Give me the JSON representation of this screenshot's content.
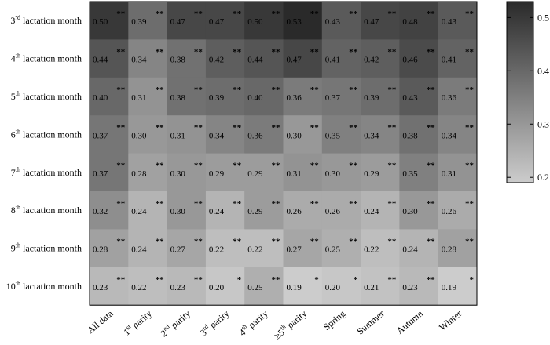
{
  "chart_data": {
    "type": "heatmap",
    "rows": [
      {
        "ordinal": "3",
        "suffix": "rd",
        "label": "lactation month"
      },
      {
        "ordinal": "4",
        "suffix": "th",
        "label": "lactation month"
      },
      {
        "ordinal": "5",
        "suffix": "th",
        "label": "lactation month"
      },
      {
        "ordinal": "6",
        "suffix": "th",
        "label": "lactation month"
      },
      {
        "ordinal": "7",
        "suffix": "th",
        "label": "lactation month"
      },
      {
        "ordinal": "8",
        "suffix": "th",
        "label": "lactation month"
      },
      {
        "ordinal": "9",
        "suffix": "th",
        "label": "lactation month"
      },
      {
        "ordinal": "10",
        "suffix": "th",
        "label": "lactation month"
      }
    ],
    "columns": [
      {
        "pre": "All data",
        "sup": "",
        "post": ""
      },
      {
        "pre": "1",
        "sup": "st",
        "post": " parity"
      },
      {
        "pre": "2",
        "sup": "nd",
        "post": " parity"
      },
      {
        "pre": "3",
        "sup": "rd",
        "post": " parity"
      },
      {
        "pre": "4",
        "sup": "th",
        "post": " parity"
      },
      {
        "pre": "≥5",
        "sup": "th",
        "post": " parity"
      },
      {
        "pre": "Spring",
        "sup": "",
        "post": ""
      },
      {
        "pre": "Summer",
        "sup": "",
        "post": ""
      },
      {
        "pre": "Autumn",
        "sup": "",
        "post": ""
      },
      {
        "pre": "Winter",
        "sup": "",
        "post": ""
      }
    ],
    "values": [
      [
        0.5,
        0.39,
        0.47,
        0.47,
        0.5,
        0.53,
        0.43,
        0.47,
        0.48,
        0.43
      ],
      [
        0.44,
        0.34,
        0.38,
        0.42,
        0.44,
        0.47,
        0.41,
        0.42,
        0.46,
        0.41
      ],
      [
        0.4,
        0.31,
        0.38,
        0.39,
        0.4,
        0.36,
        0.37,
        0.39,
        0.43,
        0.36
      ],
      [
        0.37,
        0.3,
        0.31,
        0.34,
        0.36,
        0.3,
        0.35,
        0.34,
        0.38,
        0.34
      ],
      [
        0.37,
        0.28,
        0.3,
        0.29,
        0.29,
        0.31,
        0.3,
        0.29,
        0.35,
        0.31
      ],
      [
        0.32,
        0.24,
        0.3,
        0.24,
        0.29,
        0.26,
        0.26,
        0.24,
        0.3,
        0.26
      ],
      [
        0.28,
        0.24,
        0.27,
        0.22,
        0.22,
        0.27,
        0.25,
        0.22,
        0.24,
        0.28
      ],
      [
        0.23,
        0.22,
        0.23,
        0.2,
        0.25,
        0.19,
        0.2,
        0.21,
        0.23,
        0.19
      ]
    ],
    "significance": [
      [
        "**",
        "**",
        "**",
        "**",
        "**",
        "**",
        "**",
        "**",
        "**",
        "**"
      ],
      [
        "**",
        "**",
        "**",
        "**",
        "**",
        "**",
        "**",
        "**",
        "**",
        "**"
      ],
      [
        "**",
        "**",
        "**",
        "**",
        "**",
        "**",
        "**",
        "**",
        "**",
        "**"
      ],
      [
        "**",
        "**",
        "**",
        "**",
        "**",
        "**",
        "**",
        "**",
        "**",
        "**"
      ],
      [
        "**",
        "**",
        "**",
        "**",
        "**",
        "**",
        "**",
        "**",
        "**",
        "**"
      ],
      [
        "**",
        "**",
        "**",
        "**",
        "**",
        "**",
        "**",
        "**",
        "**",
        "**"
      ],
      [
        "**",
        "**",
        "**",
        "**",
        "**",
        "**",
        "**",
        "**",
        "**",
        "**"
      ],
      [
        "**",
        "**",
        "**",
        "*",
        "**",
        "*",
        "*",
        "**",
        "**",
        "*"
      ]
    ],
    "colorbar": {
      "min": 0.19,
      "max": 0.53,
      "ticks": [
        0.5,
        0.4,
        0.3,
        0.2
      ],
      "tick_labels": [
        "0.5",
        "0.4",
        "0.3",
        "0.2"
      ],
      "low_color": "#cccccc",
      "high_color": "#2a2a2a"
    }
  }
}
